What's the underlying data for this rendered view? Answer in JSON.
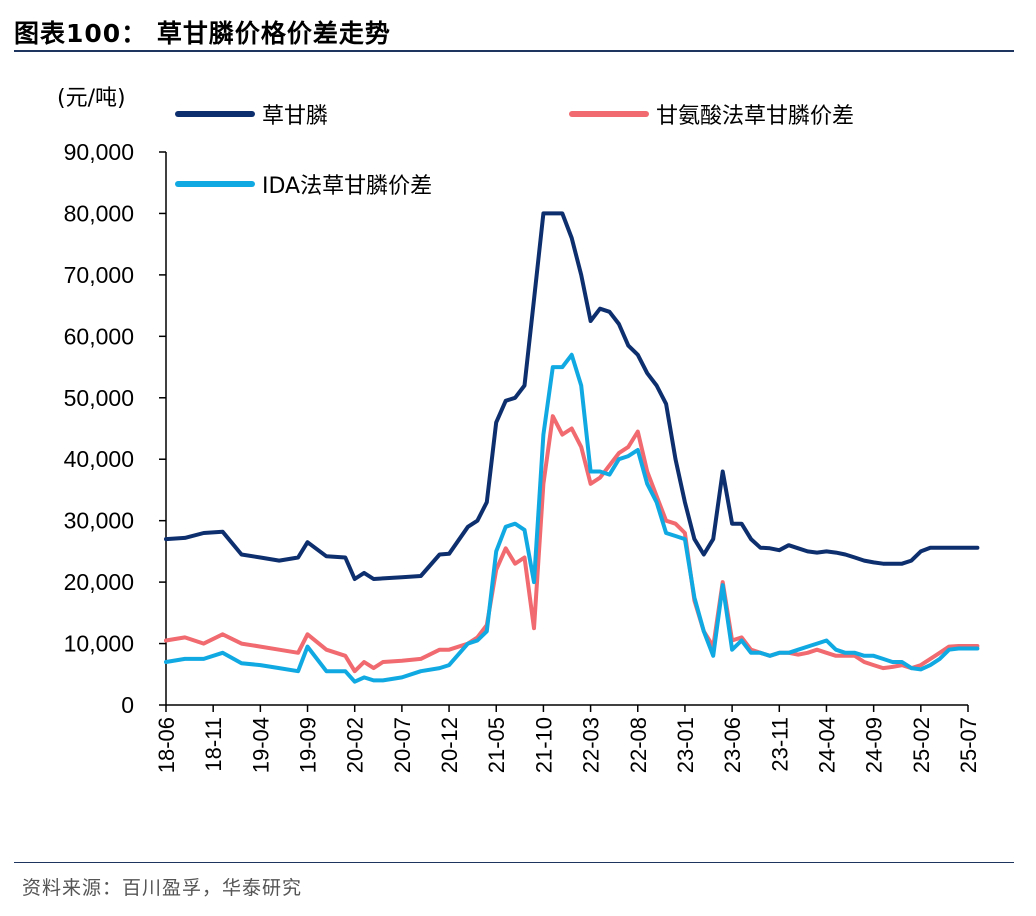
{
  "header": {
    "title": "图表100：  草甘膦价格价差走势"
  },
  "footer": {
    "source": "资料来源：百川盈孚，华泰研究"
  },
  "colors": {
    "glyphosate": "#0e2f6e",
    "glycine_spread": "#f06a6f",
    "ida_spread": "#11a9e2",
    "rule": "#1e3560"
  },
  "chart_data": {
    "type": "line",
    "unit": "(元/吨)",
    "ylim": [
      0,
      90000
    ],
    "yticks": [
      0,
      10000,
      20000,
      30000,
      40000,
      50000,
      60000,
      70000,
      80000,
      90000
    ],
    "ytick_labels": [
      "0",
      "10,000",
      "20,000",
      "30,000",
      "40,000",
      "50,000",
      "60,000",
      "70,000",
      "80,000",
      "90,000"
    ],
    "xticks": [
      "18-06",
      "18-11",
      "19-04",
      "19-09",
      "20-02",
      "20-07",
      "20-12",
      "21-05",
      "21-10",
      "22-03",
      "22-08",
      "23-01",
      "23-06",
      "23-11",
      "24-04",
      "24-09",
      "25-02",
      "25-07"
    ],
    "grid": false,
    "legend_position": "top",
    "series": [
      {
        "name": "草甘膦",
        "color": "#0e2f6e",
        "x": [
          "2018-06",
          "2018-08",
          "2018-10",
          "2018-12",
          "2019-02",
          "2019-04",
          "2019-06",
          "2019-08",
          "2019-09",
          "2019-11",
          "2020-01",
          "2020-02",
          "2020-03",
          "2020-04",
          "2020-05",
          "2020-07",
          "2020-09",
          "2020-11",
          "2020-12",
          "2021-02",
          "2021-03",
          "2021-04",
          "2021-05",
          "2021-06",
          "2021-07",
          "2021-08",
          "2021-09",
          "2021-10",
          "2021-11",
          "2021-12",
          "2022-01",
          "2022-02",
          "2022-03",
          "2022-04",
          "2022-05",
          "2022-06",
          "2022-07",
          "2022-08",
          "2022-09",
          "2022-10",
          "2022-11",
          "2022-12",
          "2023-01",
          "2023-02",
          "2023-03",
          "2023-04",
          "2023-05",
          "2023-06",
          "2023-07",
          "2023-08",
          "2023-09",
          "2023-10",
          "2023-11",
          "2023-12",
          "2024-01",
          "2024-02",
          "2024-03",
          "2024-04",
          "2024-05",
          "2024-06",
          "2024-07",
          "2024-08",
          "2024-09",
          "2024-10",
          "2024-11",
          "2024-12",
          "2025-01",
          "2025-02",
          "2025-03",
          "2025-04",
          "2025-05",
          "2025-06",
          "2025-07",
          "2025-08"
        ],
        "values": [
          27000,
          27200,
          28000,
          28200,
          24500,
          24000,
          23500,
          24000,
          26500,
          24200,
          24000,
          20500,
          21500,
          20500,
          20600,
          20800,
          21000,
          24500,
          24600,
          29000,
          30000,
          33000,
          46000,
          49500,
          50000,
          52000,
          66000,
          80000,
          80000,
          80000,
          76000,
          70000,
          62500,
          64500,
          64000,
          62000,
          58500,
          57000,
          54000,
          52000,
          49000,
          40000,
          33000,
          27000,
          24500,
          27000,
          38000,
          29500,
          29500,
          27000,
          25600,
          25500,
          25200,
          26000,
          25500,
          25000,
          24800,
          25000,
          24800,
          24500,
          24000,
          23500,
          23200,
          23000,
          23000,
          23000,
          23500,
          25000,
          25600,
          25600,
          25600,
          25600,
          25600,
          25600
        ],
        "y_note": "values trimmed to 2025-08 end point"
      },
      {
        "name": "甘氨酸法草甘膦价差",
        "color": "#f06a6f",
        "x": [
          "2018-06",
          "2018-08",
          "2018-10",
          "2018-12",
          "2019-02",
          "2019-04",
          "2019-06",
          "2019-08",
          "2019-09",
          "2019-11",
          "2020-01",
          "2020-02",
          "2020-03",
          "2020-04",
          "2020-05",
          "2020-07",
          "2020-09",
          "2020-11",
          "2020-12",
          "2021-02",
          "2021-03",
          "2021-04",
          "2021-05",
          "2021-06",
          "2021-07",
          "2021-08",
          "2021-09",
          "2021-10",
          "2021-11",
          "2021-12",
          "2022-01",
          "2022-02",
          "2022-03",
          "2022-04",
          "2022-05",
          "2022-06",
          "2022-07",
          "2022-08",
          "2022-09",
          "2022-10",
          "2022-11",
          "2022-12",
          "2023-01",
          "2023-02",
          "2023-03",
          "2023-04",
          "2023-05",
          "2023-06",
          "2023-07",
          "2023-08",
          "2023-09",
          "2023-10",
          "2023-11",
          "2023-12",
          "2024-01",
          "2024-02",
          "2024-03",
          "2024-04",
          "2024-05",
          "2024-06",
          "2024-07",
          "2024-08",
          "2024-09",
          "2024-10",
          "2024-11",
          "2024-12",
          "2025-01",
          "2025-02",
          "2025-03",
          "2025-04",
          "2025-05",
          "2025-06",
          "2025-07",
          "2025-08"
        ],
        "values": [
          10500,
          11000,
          10000,
          11500,
          10000,
          9500,
          9000,
          8500,
          11500,
          9000,
          8000,
          5500,
          7000,
          6000,
          7000,
          7200,
          7500,
          9000,
          9000,
          10000,
          11000,
          13000,
          22000,
          25500,
          23000,
          24000,
          12500,
          36000,
          47000,
          44000,
          45000,
          42000,
          36000,
          37000,
          39000,
          41000,
          42000,
          44500,
          38000,
          34000,
          30000,
          29500,
          28000,
          17000,
          12000,
          9500,
          20000,
          10500,
          11000,
          9000,
          8500,
          8000,
          8500,
          8500,
          8200,
          8500,
          9000,
          8500,
          8000,
          8000,
          8000,
          7000,
          6500,
          6000,
          6200,
          6500,
          6000,
          6500,
          7500,
          8500,
          9500,
          9600,
          9600,
          9600
        ]
      },
      {
        "name": "IDA法草甘膦价差",
        "color": "#11a9e2",
        "x": [
          "2018-06",
          "2018-08",
          "2018-10",
          "2018-12",
          "2019-02",
          "2019-04",
          "2019-06",
          "2019-08",
          "2019-09",
          "2019-11",
          "2020-01",
          "2020-02",
          "2020-03",
          "2020-04",
          "2020-05",
          "2020-07",
          "2020-09",
          "2020-11",
          "2020-12",
          "2021-02",
          "2021-03",
          "2021-04",
          "2021-05",
          "2021-06",
          "2021-07",
          "2021-08",
          "2021-09",
          "2021-10",
          "2021-11",
          "2021-12",
          "2022-01",
          "2022-02",
          "2022-03",
          "2022-04",
          "2022-05",
          "2022-06",
          "2022-07",
          "2022-08",
          "2022-09",
          "2022-10",
          "2022-11",
          "2022-12",
          "2023-01",
          "2023-02",
          "2023-03",
          "2023-04",
          "2023-05",
          "2023-06",
          "2023-07",
          "2023-08",
          "2023-09",
          "2023-10",
          "2023-11",
          "2023-12",
          "2024-01",
          "2024-02",
          "2024-03",
          "2024-04",
          "2024-05",
          "2024-06",
          "2024-07",
          "2024-08",
          "2024-09",
          "2024-10",
          "2024-11",
          "2024-12",
          "2025-01",
          "2025-02",
          "2025-03",
          "2025-04",
          "2025-05",
          "2025-06",
          "2025-07",
          "2025-08"
        ],
        "values": [
          7000,
          7500,
          7500,
          8500,
          6800,
          6500,
          6000,
          5500,
          9500,
          5500,
          5500,
          3800,
          4500,
          4000,
          4000,
          4500,
          5500,
          6000,
          6500,
          10000,
          10500,
          12000,
          25000,
          29000,
          29500,
          28500,
          20000,
          44000,
          55000,
          55000,
          57000,
          52000,
          38000,
          38000,
          37500,
          40000,
          40500,
          41500,
          36000,
          33000,
          28000,
          27500,
          27000,
          17500,
          12000,
          8000,
          19500,
          9000,
          10500,
          8500,
          8500,
          8000,
          8500,
          8500,
          9000,
          9500,
          10000,
          10500,
          9000,
          8500,
          8500,
          8000,
          8000,
          7500,
          7000,
          7000,
          6000,
          5800,
          6500,
          7500,
          9000,
          9200,
          9200,
          9200
        ]
      }
    ]
  }
}
